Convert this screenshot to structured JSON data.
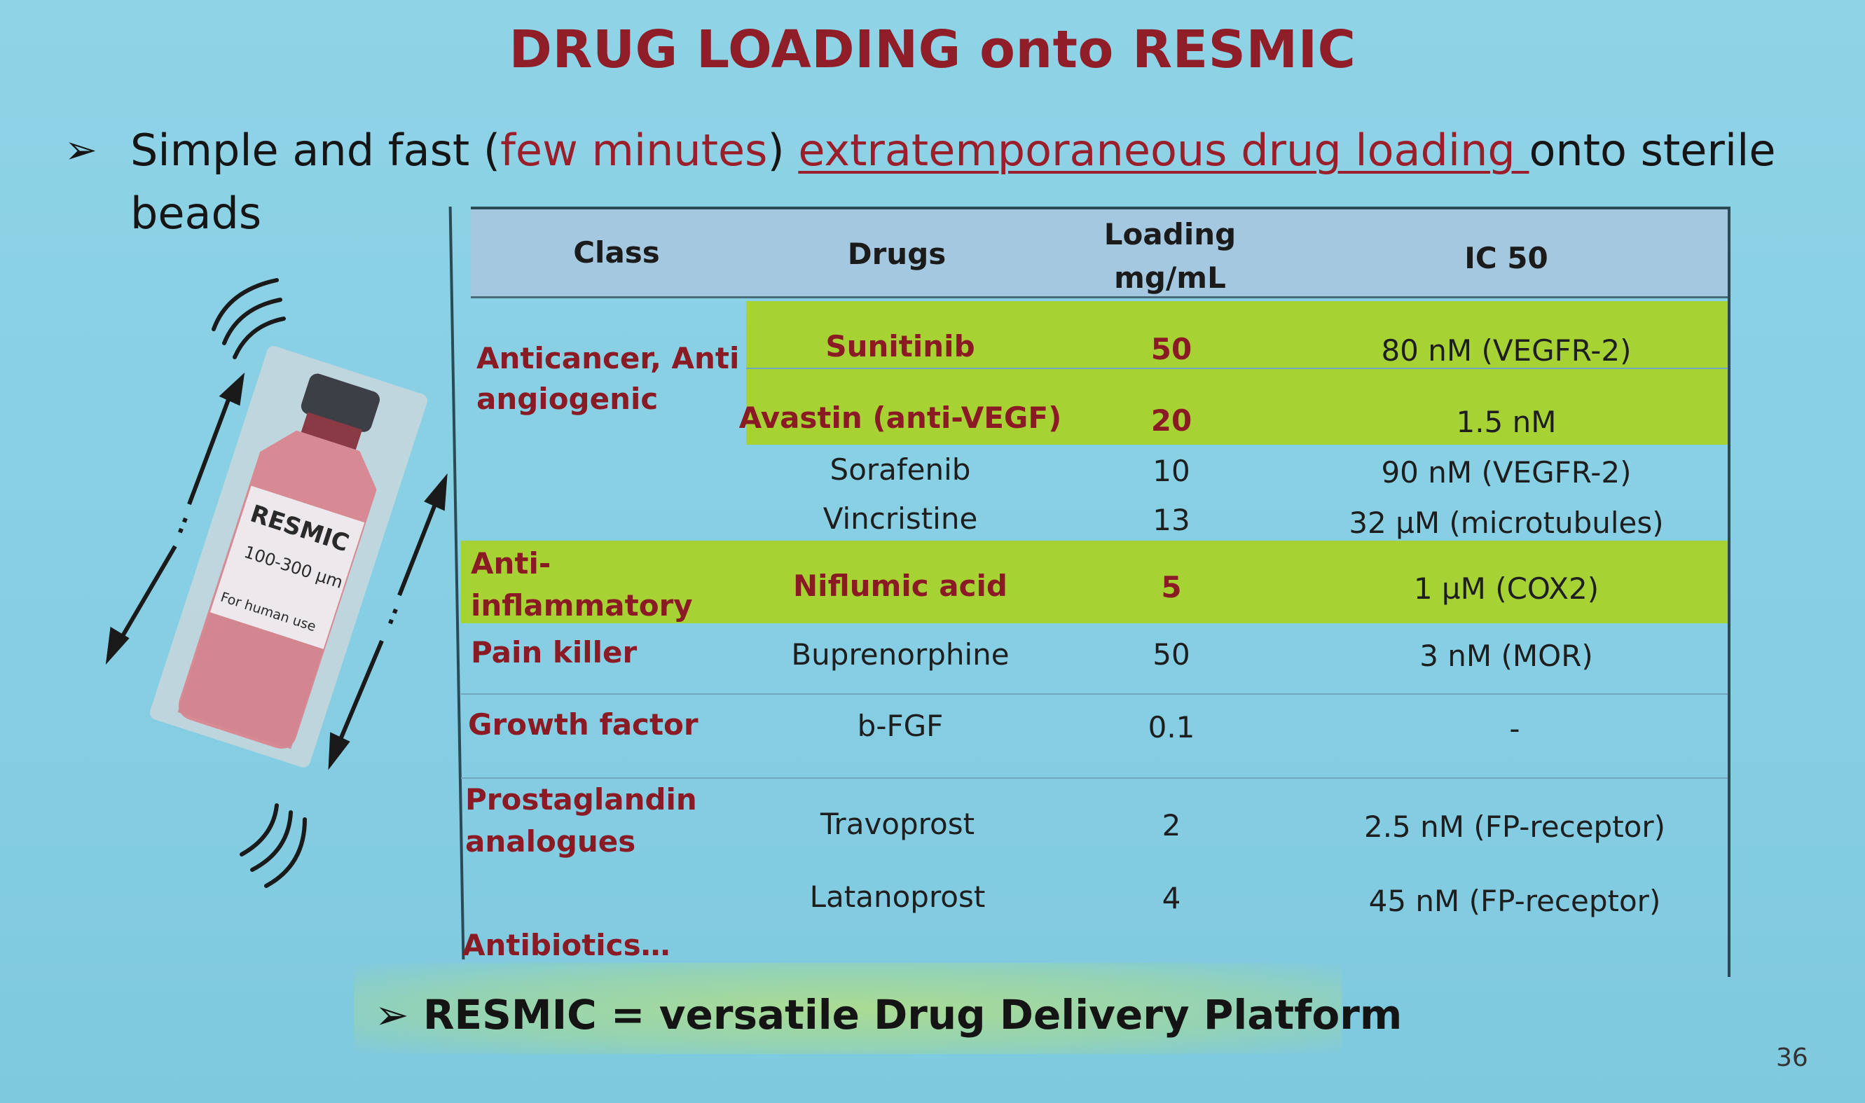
{
  "slide": {
    "title": "DRUG LOADING onto RESMIC",
    "bullet": {
      "marker": "➢",
      "part1": "Simple and fast (",
      "part2": "few minutes",
      "part3": ") ",
      "part4": "extratemporaneous drug loading ",
      "part5": "onto sterile",
      "part6": "beads"
    },
    "bottom": {
      "marker": "➢",
      "text": "RESMIC = versatile Drug Delivery Platform"
    },
    "page_number": "36"
  },
  "vial": {
    "label_brand": "RESMIC",
    "label_size": "100-300 µm",
    "label_use": "For human use"
  },
  "table": {
    "headers": {
      "class": "Class",
      "drugs": "Drugs",
      "loading_line1": "Loading",
      "loading_line2": "mg/mL",
      "ic50": "IC 50"
    },
    "classes": {
      "anticancer_1": "Anticancer, Anti",
      "anticancer_2": "angiogenic",
      "antiinfl_1": "Anti-",
      "antiinfl_2": "inflammatory",
      "pain": "Pain killer",
      "growth": "Growth factor",
      "prosta_1": "Prostaglandin",
      "prosta_2": "analogues",
      "antibiotics": "Antibiotics…"
    },
    "rows": [
      {
        "drug": "Sunitinib",
        "loading": "50",
        "ic50": "80 nM (VEGFR-2)"
      },
      {
        "drug": "Avastin (anti-VEGF)",
        "loading": "20",
        "ic50": "1.5 nM"
      },
      {
        "drug": "Sorafenib",
        "loading": "10",
        "ic50": "90 nM (VEGFR-2)"
      },
      {
        "drug": "Vincristine",
        "loading": "13",
        "ic50": "32 µM (microtubules)"
      },
      {
        "drug": "Niflumic acid",
        "loading": "5",
        "ic50": "1 µM (COX2)"
      },
      {
        "drug": "Buprenorphine",
        "loading": "50",
        "ic50": "3 nM (MOR)"
      },
      {
        "drug": "b-FGF",
        "loading": "0.1",
        "ic50": "-"
      },
      {
        "drug": "Travoprost",
        "loading": "2",
        "ic50": "2.5 nM (FP-receptor)"
      },
      {
        "drug": "Latanoprost",
        "loading": "4",
        "ic50": "45 nM (FP-receptor)"
      }
    ],
    "highlight_color": "#a7d234"
  },
  "colors": {
    "title_red": "#8f1e28",
    "header_blue": "#a4c8e0",
    "background": "#8fd3e6"
  }
}
